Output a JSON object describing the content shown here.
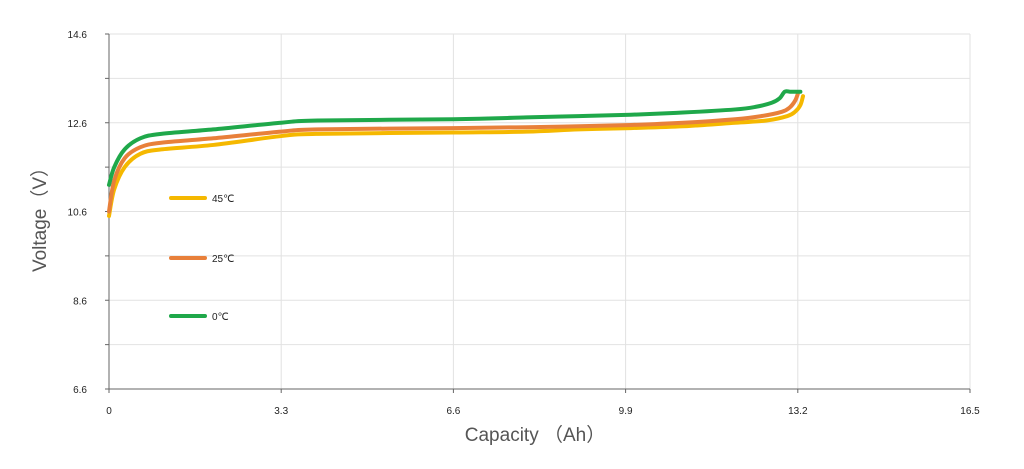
{
  "chart_data": {
    "type": "line",
    "title": "",
    "xlabel": "Capacity （Ah）",
    "ylabel": "Voltage（V）",
    "xlim": [
      0,
      16.5
    ],
    "ylim": [
      6.6,
      14.6
    ],
    "xticks": [
      0,
      3.3,
      6.6,
      9.9,
      13.2,
      16.5
    ],
    "xtick_labels": [
      "0",
      "3.3",
      "6.6",
      "9.9",
      "13.2",
      "16.5"
    ],
    "yticks": [
      6.6,
      8.6,
      10.6,
      12.6,
      14.6
    ],
    "ytick_labels": [
      "6.6",
      "8.6",
      "10.6",
      "12.6",
      "14.6"
    ],
    "grid": true,
    "legend_position": "left",
    "series": [
      {
        "name": "45℃",
        "color": "#F5B800",
        "x": [
          0,
          0.1,
          0.3,
          0.6,
          1.0,
          2.0,
          3.3,
          4.0,
          6.6,
          8.0,
          9.0,
          10.0,
          11.0,
          12.0,
          12.6,
          13.0,
          13.15,
          13.25,
          13.3
        ],
        "y": [
          10.5,
          11.1,
          11.6,
          11.9,
          12.0,
          12.1,
          12.3,
          12.35,
          12.38,
          12.4,
          12.45,
          12.48,
          12.52,
          12.6,
          12.65,
          12.75,
          12.85,
          13.0,
          13.2
        ]
      },
      {
        "name": "25℃",
        "color": "#E8803A",
        "x": [
          0,
          0.1,
          0.3,
          0.6,
          1.0,
          2.0,
          3.3,
          4.0,
          6.6,
          8.0,
          9.0,
          10.0,
          11.0,
          12.0,
          12.5,
          12.9,
          13.05,
          13.15,
          13.2
        ],
        "y": [
          10.6,
          11.3,
          11.8,
          12.05,
          12.15,
          12.25,
          12.4,
          12.45,
          12.48,
          12.5,
          12.52,
          12.55,
          12.6,
          12.68,
          12.75,
          12.85,
          12.95,
          13.1,
          13.25
        ]
      },
      {
        "name": "0℃",
        "color": "#1FA84A",
        "x": [
          0,
          0.1,
          0.3,
          0.6,
          1.0,
          2.0,
          3.3,
          4.0,
          6.6,
          8.0,
          9.0,
          10.0,
          11.0,
          12.0,
          12.4,
          12.7,
          12.85,
          12.95,
          13.05,
          13.15,
          13.25
        ],
        "y": [
          11.2,
          11.6,
          12.0,
          12.25,
          12.35,
          12.45,
          12.6,
          12.65,
          12.68,
          12.72,
          12.75,
          12.78,
          12.83,
          12.9,
          12.96,
          13.05,
          13.15,
          13.3,
          13.3,
          13.3,
          13.3
        ]
      }
    ]
  }
}
